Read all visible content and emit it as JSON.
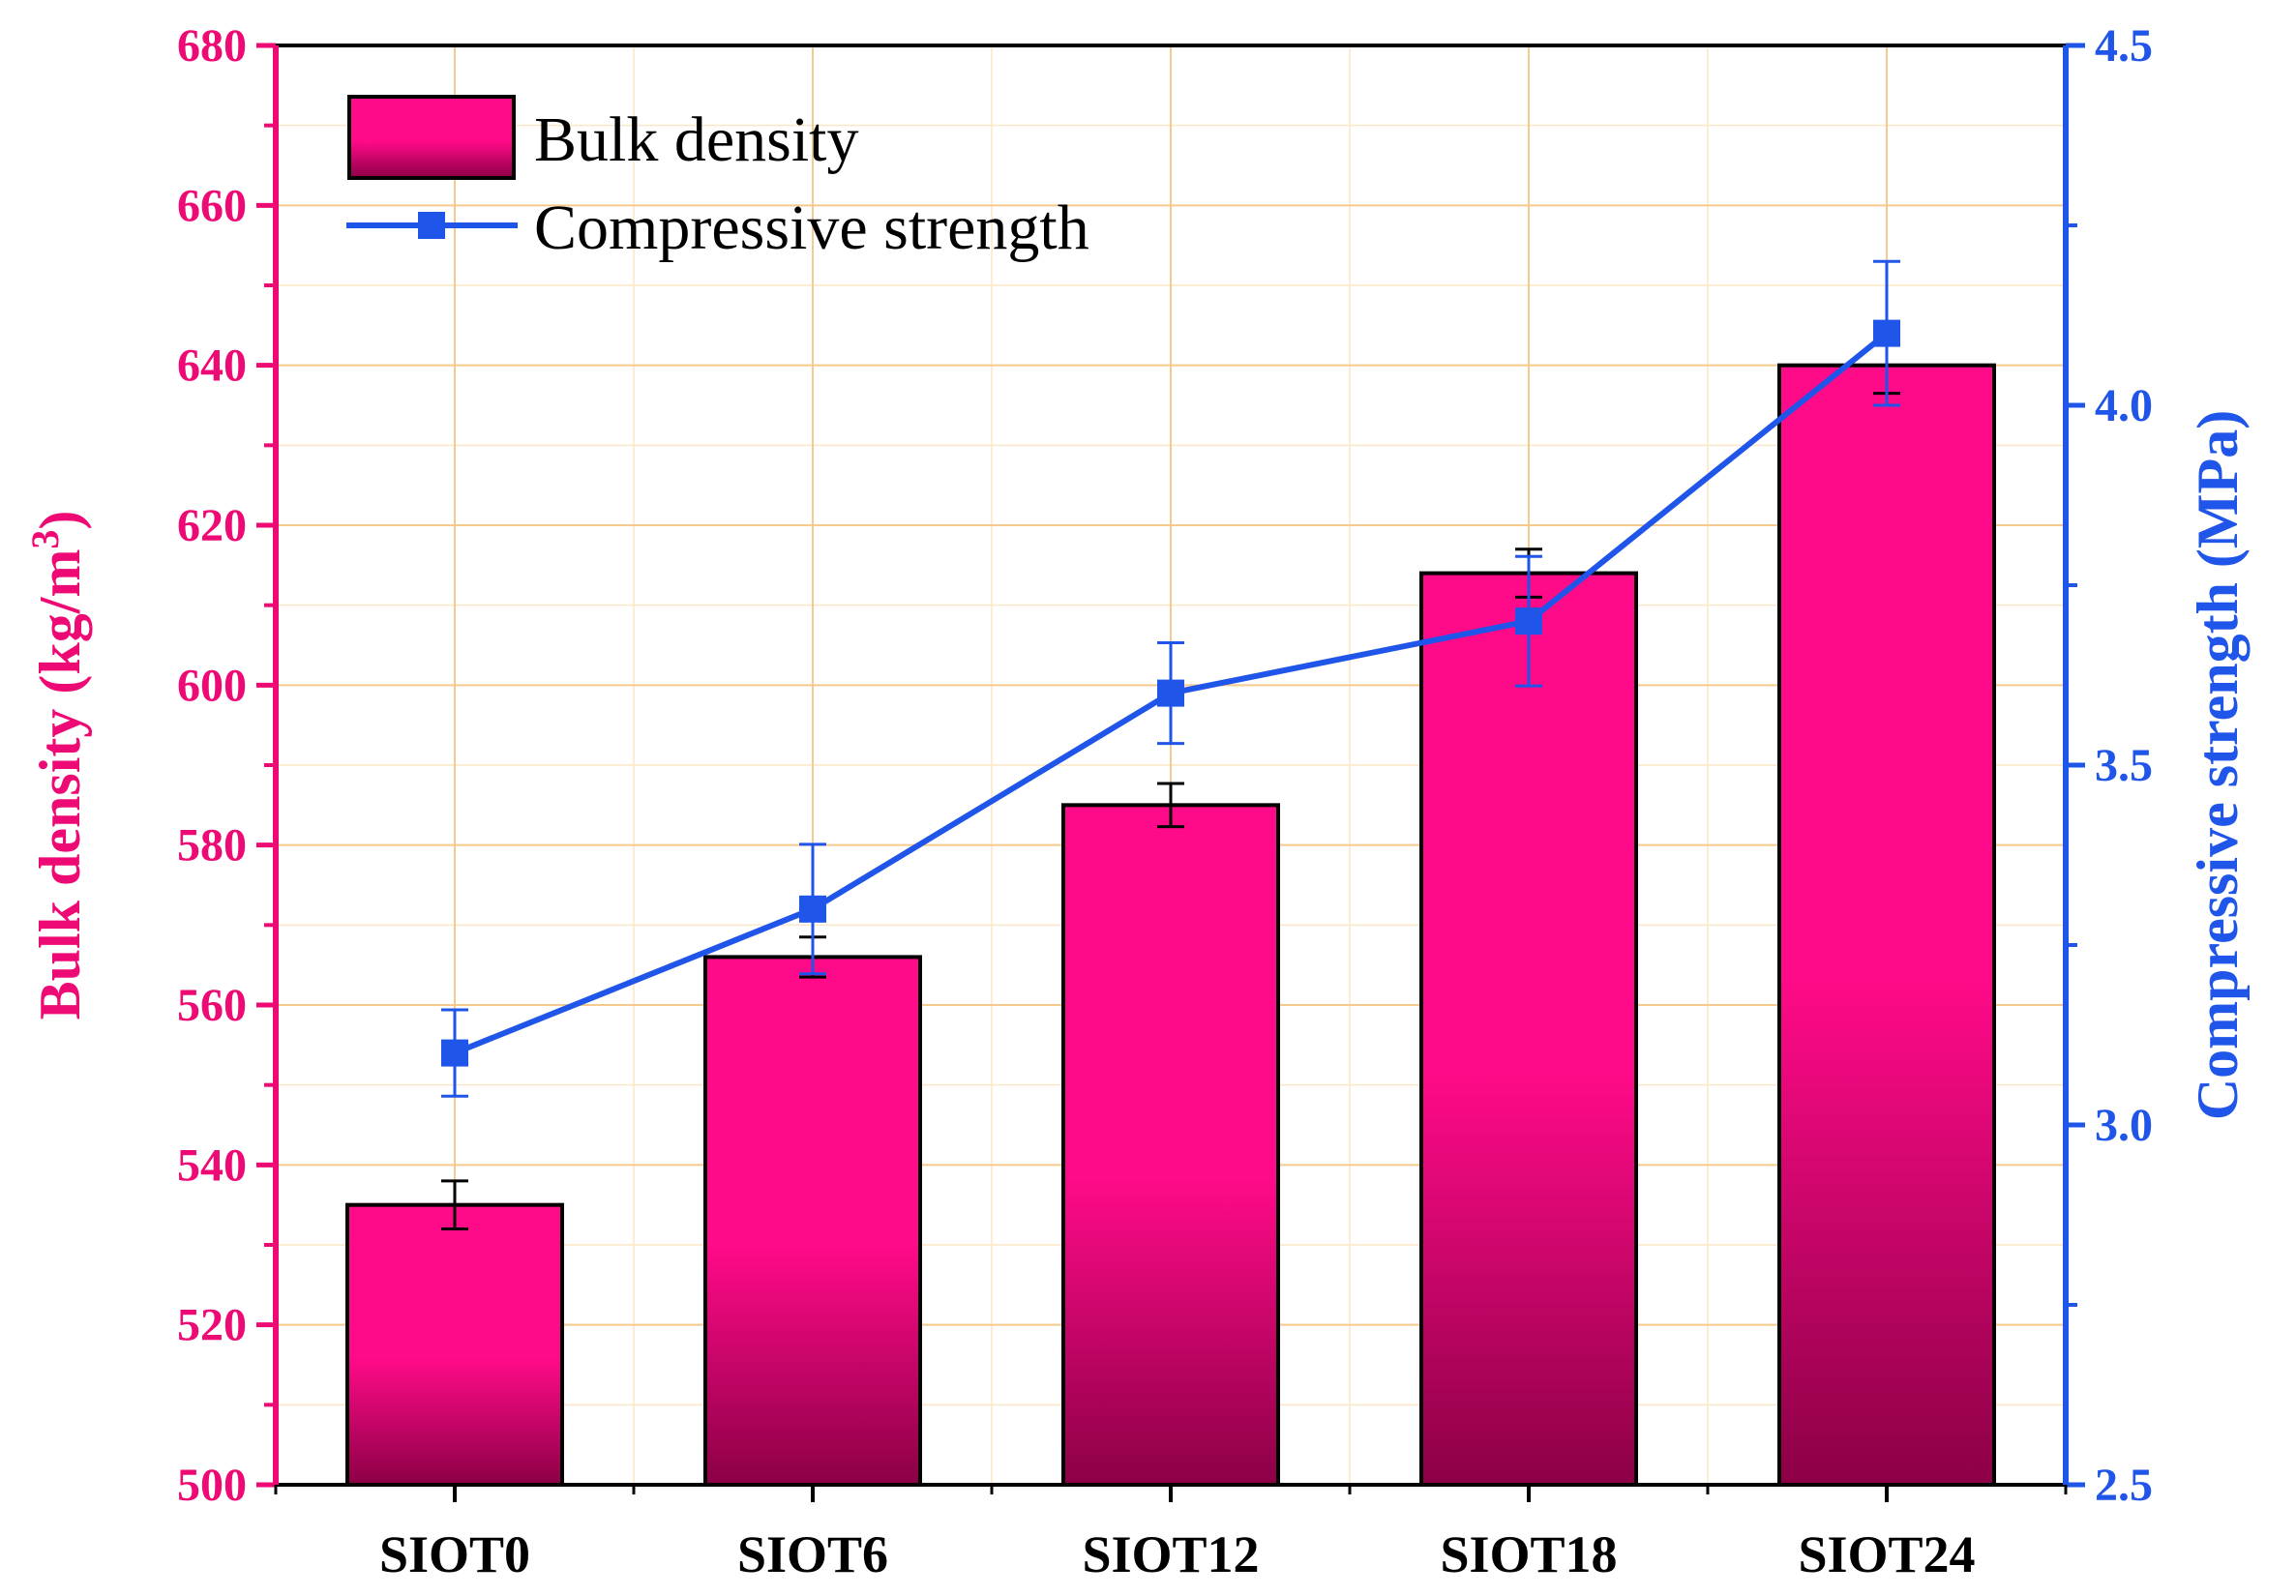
{
  "chart_data": {
    "type": "bar",
    "categories": [
      "SIOT0",
      "SIOT6",
      "SIOT12",
      "SIOT18",
      "SIOT24"
    ],
    "series": [
      {
        "name": "Bulk density",
        "kind": "bar",
        "axis": "left",
        "values": [
          535,
          566,
          585,
          614,
          640
        ],
        "errors": [
          3,
          2.5,
          2.7,
          3,
          3.5
        ]
      },
      {
        "name": "Compressive strength",
        "kind": "line",
        "axis": "right",
        "values": [
          3.1,
          3.3,
          3.6,
          3.7,
          4.1
        ],
        "errors": [
          0.06,
          0.09,
          0.07,
          0.09,
          0.1
        ]
      }
    ],
    "ylabel_left": "Bulk density (kg/m",
    "ylabel_left_superscript": "3",
    "ylabel_left_close": ")",
    "ylabel_right": "Compressive strength (MPa)",
    "ylim_left": [
      500,
      680
    ],
    "ylim_right": [
      2.5,
      4.5
    ],
    "yticks_left": [
      "500",
      "520",
      "540",
      "560",
      "580",
      "600",
      "620",
      "640",
      "660",
      "680"
    ],
    "yticks_right": [
      "2.5",
      "3.0",
      "3.5",
      "4.0",
      "4.5"
    ],
    "grid": true,
    "legend_position": "top-left",
    "colors": {
      "left_axis": "#ee0a74",
      "right_axis": "#1f55e8",
      "bar_top": "#ff0a88",
      "bar_bottom": "#8c0046",
      "grid": "#f6c98c",
      "line": "#1f55e8"
    }
  }
}
